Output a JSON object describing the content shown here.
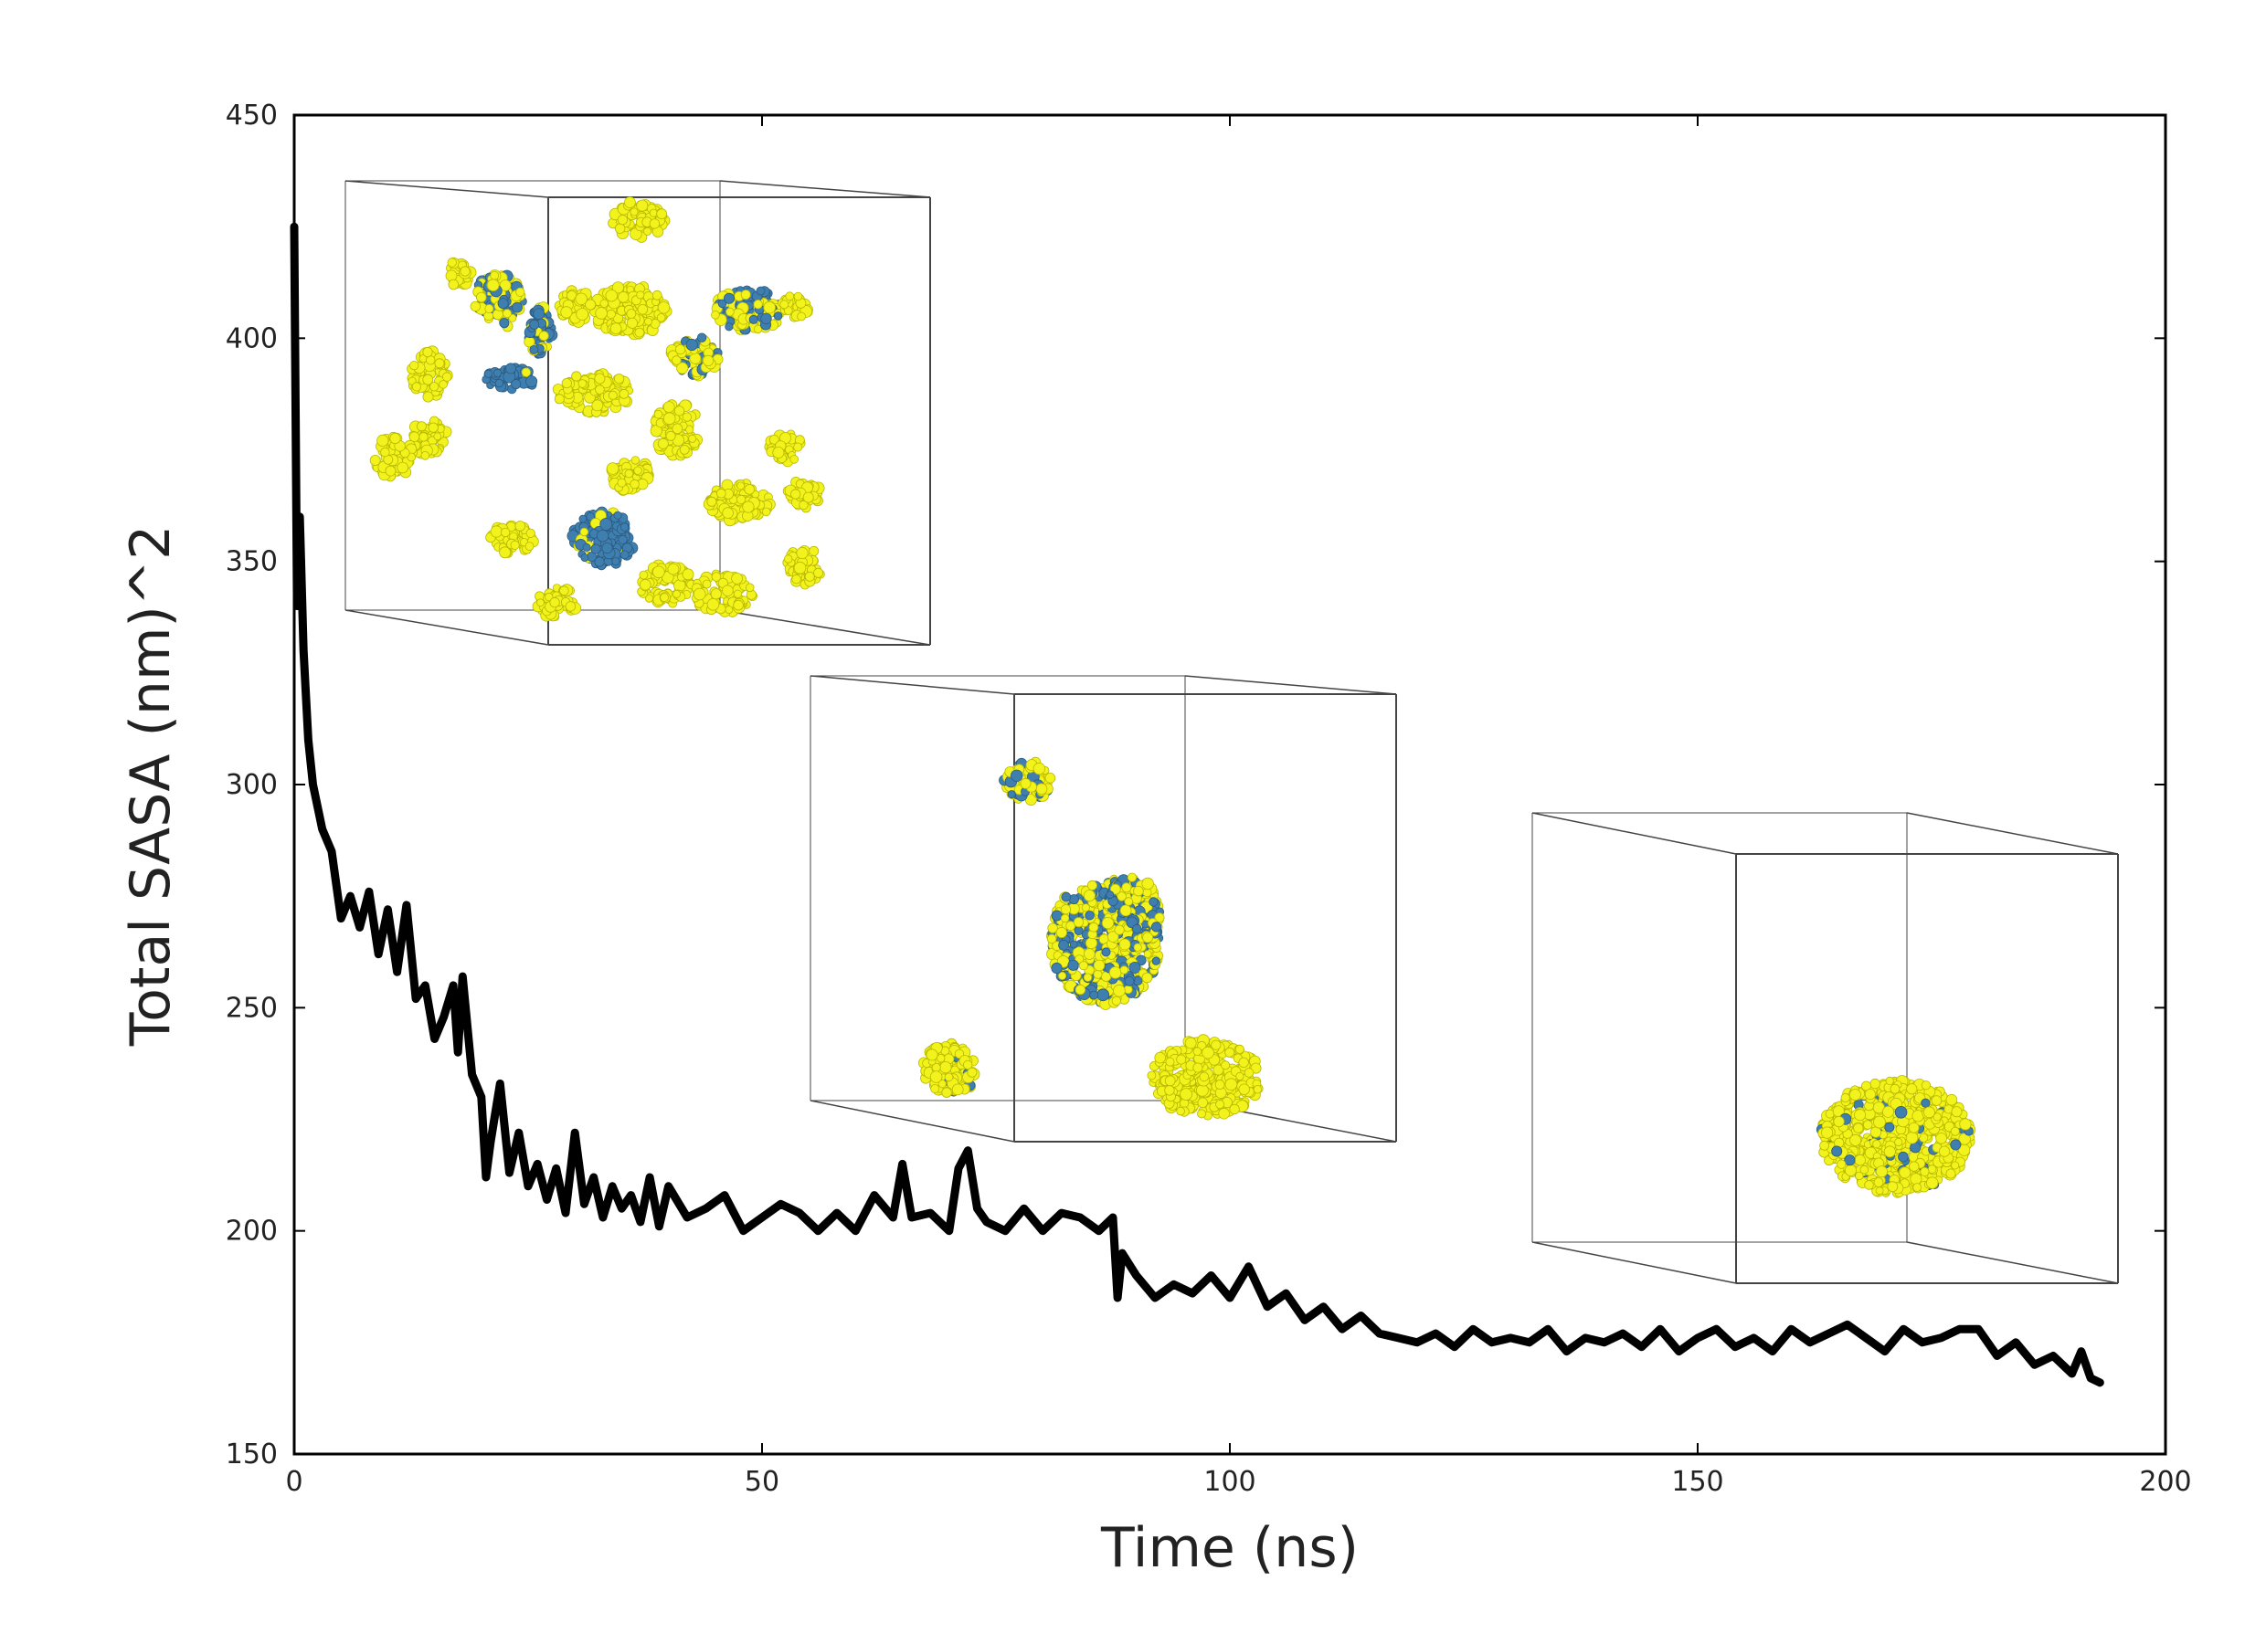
{
  "chart_data": {
    "type": "line",
    "title": "",
    "xlabel": "Time (ns)",
    "ylabel": "Total SASA (nm)^2",
    "xlim": [
      0,
      200
    ],
    "ylim": [
      150,
      450
    ],
    "xticks": [
      0,
      50,
      100,
      150,
      200
    ],
    "yticks": [
      150,
      200,
      250,
      300,
      350,
      400,
      450
    ],
    "xtick_labels": [
      "0",
      "50",
      "100",
      "150",
      "200"
    ],
    "ytick_labels": [
      "150",
      "200",
      "250",
      "300",
      "350",
      "400",
      "450"
    ],
    "grid": false,
    "legend": "none",
    "series": [
      {
        "color": "#000000",
        "x": [
          0,
          0.3,
          0.6,
          1,
          1.5,
          2,
          3,
          4,
          5,
          6,
          7,
          8,
          9,
          10,
          11,
          12,
          13,
          14,
          15,
          16,
          17,
          17.5,
          18,
          19,
          20,
          20.5,
          21,
          22,
          23,
          24,
          25,
          26,
          27,
          28,
          29,
          30,
          31,
          32,
          33,
          34,
          35,
          36,
          37,
          38,
          39,
          40,
          42,
          44,
          46,
          48,
          50,
          52,
          54,
          56,
          58,
          60,
          62,
          64,
          65,
          66,
          68,
          70,
          71,
          72,
          73,
          74,
          76,
          78,
          80,
          82,
          84,
          86,
          87.5,
          88,
          88.5,
          90,
          92,
          94,
          96,
          98,
          100,
          102,
          104,
          106,
          108,
          110,
          112,
          114,
          116,
          118,
          120,
          122,
          124,
          126,
          128,
          130,
          132,
          134,
          136,
          138,
          140,
          142,
          144,
          146,
          148,
          150,
          152,
          154,
          156,
          158,
          160,
          162,
          164,
          166,
          168,
          170,
          172,
          174,
          176,
          178,
          180,
          182,
          184,
          186,
          188,
          190,
          191,
          192,
          193
        ],
        "y": [
          425,
          340,
          360,
          330,
          310,
          300,
          290,
          285,
          270,
          275,
          268,
          276,
          262,
          272,
          258,
          273,
          252,
          255,
          243,
          248,
          255,
          240,
          257,
          235,
          230,
          212,
          220,
          233,
          213,
          222,
          210,
          215,
          207,
          214,
          204,
          222,
          206,
          212,
          203,
          210,
          205,
          208,
          202,
          212,
          201,
          210,
          203,
          205,
          208,
          200,
          203,
          206,
          204,
          200,
          204,
          200,
          208,
          203,
          215,
          203,
          204,
          200,
          214,
          218,
          205,
          202,
          200,
          205,
          200,
          204,
          203,
          200,
          203,
          185,
          195,
          190,
          185,
          188,
          186,
          190,
          185,
          192,
          183,
          186,
          180,
          183,
          178,
          181,
          177,
          176,
          175,
          177,
          174,
          178,
          175,
          176,
          175,
          178,
          173,
          176,
          175,
          177,
          174,
          178,
          173,
          176,
          178,
          174,
          176,
          173,
          178,
          175,
          177,
          179,
          176,
          173,
          178,
          175,
          176,
          178,
          178,
          172,
          175,
          170,
          172,
          168,
          173,
          167,
          166
        ]
      }
    ]
  },
  "insets": [
    {
      "name": "inset-early",
      "yellow_color": "#f2f21c",
      "blue_color": "#3f7fb0"
    },
    {
      "name": "inset-mid",
      "yellow_color": "#f2f21c",
      "blue_color": "#3f7fb0"
    },
    {
      "name": "inset-late",
      "yellow_color": "#f2f21c",
      "blue_color": "#3f7fb0"
    }
  ]
}
